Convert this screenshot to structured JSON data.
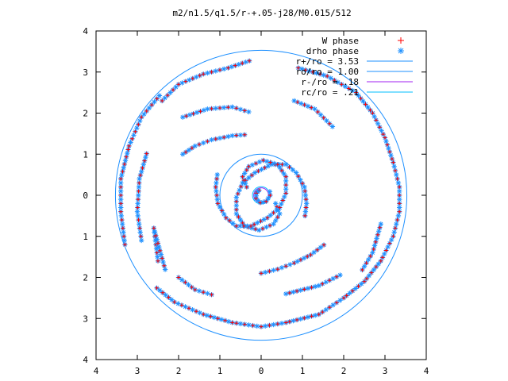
{
  "chart_data": {
    "type": "scatter",
    "title": "m2/n1.5/q1.5/r-+.05-j28/M0.015/512",
    "xlabel": "",
    "ylabel": "",
    "xlim": [
      -4,
      4
    ],
    "ylim": [
      -4,
      4
    ],
    "xtick_values": [
      -4,
      -3,
      -2,
      -1,
      0,
      1,
      2,
      3,
      4
    ],
    "xtick_labels": [
      "4",
      "3",
      "2",
      "1",
      "0",
      "1",
      "2",
      "3",
      "4"
    ],
    "ytick_values": [
      4,
      3,
      2,
      1,
      0,
      -1,
      -2,
      -3,
      -4
    ],
    "ytick_labels": [
      "4",
      "3",
      "2",
      "1",
      "0",
      "1",
      "2",
      "3",
      "4"
    ],
    "grid": false,
    "legend_position": "top-right",
    "legend": [
      {
        "label": "W phase",
        "marker": "plus",
        "color": "#ff0000"
      },
      {
        "label": "drho phase",
        "marker": "star",
        "color": "#1e90ff"
      },
      {
        "label": "r+/ro = 3.53",
        "line": true,
        "color": "#1e90ff",
        "radius": 3.53
      },
      {
        "label": "ro/ro = 1.00",
        "line": true,
        "color": "#1e90ff",
        "radius": 1.0
      },
      {
        "label": "r-/ro =  .18",
        "line": true,
        "color": "#a020f0",
        "radius": 0.18
      },
      {
        "label": "rc/ro =  .21",
        "line": true,
        "color": "#00bfff",
        "radius": 0.21
      }
    ],
    "series": [
      {
        "name": "drho phase",
        "description": "spiral arms; each arm is a list of [x,y] points",
        "arms": [
          [
            [
              -0.05,
              0.12
            ],
            [
              -0.12,
              0.05
            ],
            [
              -0.12,
              -0.08
            ],
            [
              -0.02,
              -0.18
            ],
            [
              0.12,
              -0.15
            ],
            [
              0.22,
              0.0
            ],
            [
              0.2,
              0.18
            ]
          ],
          [
            [
              0.35,
              -0.2
            ],
            [
              0.45,
              -0.45
            ],
            [
              0.3,
              -0.7
            ],
            [
              -0.05,
              -0.85
            ],
            [
              -0.4,
              -0.75
            ],
            [
              -0.6,
              -0.45
            ],
            [
              -0.6,
              -0.05
            ],
            [
              -0.45,
              0.3
            ],
            [
              -0.15,
              0.55
            ],
            [
              0.25,
              0.75
            ],
            [
              0.6,
              0.75
            ],
            [
              0.85,
              0.55
            ],
            [
              1.05,
              0.2
            ],
            [
              1.1,
              -0.2
            ],
            [
              1.05,
              -0.6
            ]
          ],
          [
            [
              -0.35,
              0.2
            ],
            [
              -0.45,
              0.45
            ],
            [
              -0.3,
              0.7
            ],
            [
              0.05,
              0.85
            ],
            [
              0.4,
              0.75
            ],
            [
              0.6,
              0.45
            ],
            [
              0.6,
              0.05
            ],
            [
              0.45,
              -0.3
            ],
            [
              0.15,
              -0.55
            ],
            [
              -0.25,
              -0.75
            ],
            [
              -0.6,
              -0.75
            ],
            [
              -0.85,
              -0.55
            ],
            [
              -1.05,
              -0.2
            ],
            [
              -1.1,
              0.2
            ],
            [
              -1.05,
              0.6
            ]
          ],
          [
            [
              -1.9,
              1.0
            ],
            [
              -1.6,
              1.2
            ],
            [
              -1.2,
              1.35
            ],
            [
              -0.7,
              1.45
            ],
            [
              -0.3,
              1.48
            ]
          ],
          [
            [
              0.0,
              -1.9
            ],
            [
              0.4,
              -1.8
            ],
            [
              0.8,
              -1.65
            ],
            [
              1.2,
              -1.45
            ],
            [
              1.6,
              -1.15
            ]
          ],
          [
            [
              -1.9,
              1.9
            ],
            [
              -1.3,
              2.1
            ],
            [
              -0.7,
              2.15
            ],
            [
              -0.2,
              2.0
            ]
          ],
          [
            [
              -2.0,
              -2.0
            ],
            [
              -1.6,
              -2.3
            ],
            [
              -1.1,
              -2.45
            ]
          ],
          [
            [
              0.6,
              -2.4
            ],
            [
              1.4,
              -2.2
            ],
            [
              2.0,
              -1.9
            ]
          ],
          [
            [
              -2.4,
              2.3
            ],
            [
              -2.0,
              2.7
            ],
            [
              -1.4,
              2.95
            ],
            [
              -0.8,
              3.1
            ],
            [
              -0.2,
              3.3
            ]
          ],
          [
            [
              0.8,
              2.3
            ],
            [
              1.3,
              2.1
            ],
            [
              1.8,
              1.6
            ]
          ],
          [
            [
              0.9,
              3.1
            ],
            [
              1.6,
              2.9
            ],
            [
              2.3,
              2.5
            ],
            [
              2.7,
              2.0
            ],
            [
              3.0,
              1.4
            ],
            [
              3.2,
              0.8
            ],
            [
              3.35,
              0.2
            ],
            [
              3.35,
              -0.4
            ],
            [
              3.2,
              -1.0
            ],
            [
              2.9,
              -1.6
            ],
            [
              2.5,
              -2.1
            ],
            [
              2.0,
              -2.5
            ],
            [
              1.4,
              -2.9
            ],
            [
              0.6,
              -3.1
            ],
            [
              0.0,
              -3.2
            ],
            [
              -0.7,
              -3.1
            ],
            [
              -1.4,
              -2.9
            ],
            [
              -2.1,
              -2.6
            ],
            [
              -2.6,
              -2.2
            ]
          ],
          [
            [
              2.9,
              -0.7
            ],
            [
              2.7,
              -1.4
            ],
            [
              2.4,
              -1.9
            ]
          ],
          [
            [
              -3.3,
              -1.2
            ],
            [
              -3.4,
              -0.4
            ],
            [
              -3.4,
              0.4
            ],
            [
              -3.2,
              1.2
            ],
            [
              -2.9,
              1.9
            ],
            [
              -2.4,
              2.5
            ]
          ],
          [
            [
              -2.9,
              -1.1
            ],
            [
              -3.0,
              -0.4
            ],
            [
              -2.95,
              0.4
            ],
            [
              -2.75,
              1.1
            ]
          ],
          [
            [
              -2.5,
              -1.6
            ],
            [
              -2.6,
              -0.8
            ],
            [
              -2.3,
              -1.9
            ]
          ]
        ]
      },
      {
        "name": "W phase",
        "description": "overlaps drho phase points"
      }
    ],
    "annotations": []
  }
}
